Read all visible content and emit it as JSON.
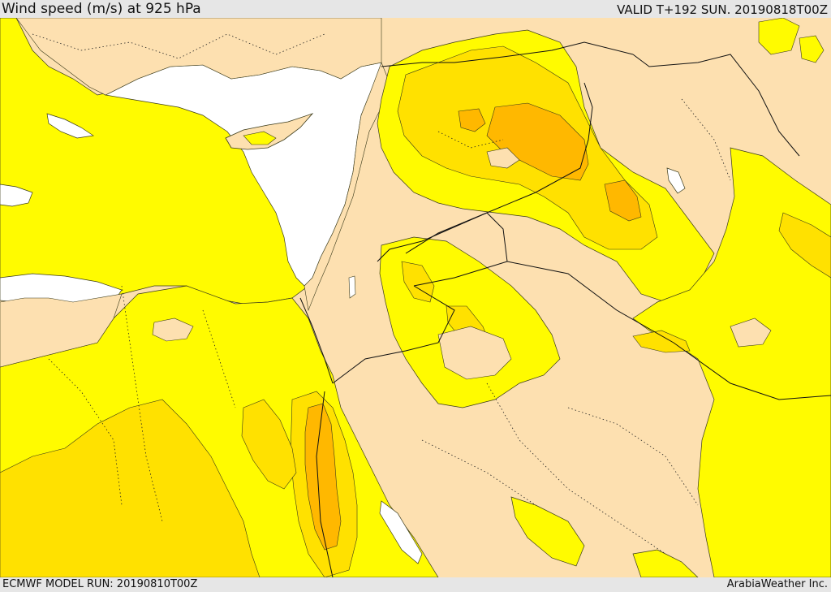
{
  "header": {
    "title": "Wind speed (m/s) at 925 hPa",
    "valid": "VALID T+192 SUN. 20190818T00Z"
  },
  "footer": {
    "model_run": "ECMWF MODEL RUN: 20190810T00Z",
    "credit": "ArabiaWeather Inc."
  },
  "map": {
    "region": "Eastern Mediterranean and Middle East",
    "field": "wind speed 925 hPa",
    "colors": {
      "sea": "#ffffff",
      "land_calm": "#fde0b0",
      "band_1": "#fffb00",
      "band_2": "#ffe100",
      "band_3": "#ffb800",
      "contour": "#3a3a1a",
      "border": "#111111"
    }
  }
}
